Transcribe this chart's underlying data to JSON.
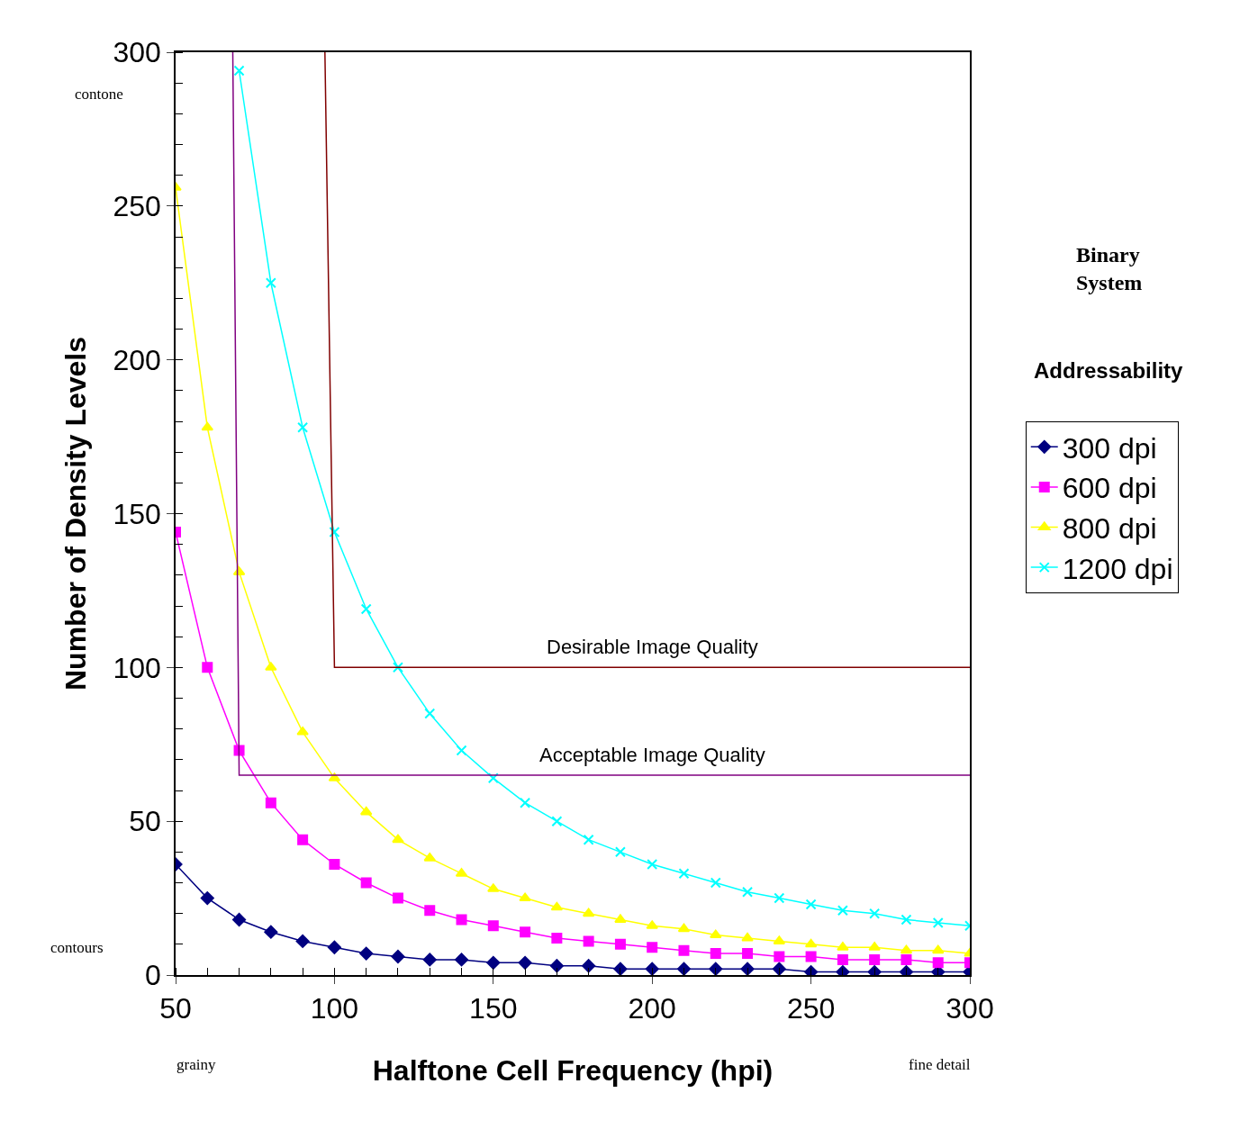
{
  "chart_data": {
    "type": "line",
    "xlabel": "Halftone Cell Frequency (hpi)",
    "ylabel": "Number of Density Levels",
    "legend_title": "Addressability",
    "x": [
      50,
      60,
      70,
      80,
      90,
      100,
      110,
      120,
      130,
      140,
      150,
      160,
      170,
      180,
      190,
      200,
      210,
      220,
      230,
      240,
      250,
      260,
      270,
      280,
      290,
      300
    ],
    "series": [
      {
        "name": "300 dpi",
        "color": "#000080",
        "marker": "diamond",
        "values": [
          36,
          25,
          18,
          14,
          11,
          9,
          7,
          6,
          5,
          5,
          4,
          4,
          3,
          3,
          2,
          2,
          2,
          2,
          2,
          2,
          1,
          1,
          1,
          1,
          1,
          1
        ]
      },
      {
        "name": "600 dpi",
        "color": "#ff00ff",
        "marker": "square",
        "values": [
          144,
          100,
          73,
          56,
          44,
          36,
          30,
          25,
          21,
          18,
          16,
          14,
          12,
          11,
          10,
          9,
          8,
          7,
          7,
          6,
          6,
          5,
          5,
          5,
          4,
          4
        ]
      },
      {
        "name": "800 dpi",
        "color": "#ffff00",
        "marker": "triangle",
        "values": [
          256,
          178,
          131,
          100,
          79,
          64,
          53,
          44,
          38,
          33,
          28,
          25,
          22,
          20,
          18,
          16,
          15,
          13,
          12,
          11,
          10,
          9,
          9,
          8,
          8,
          7
        ]
      },
      {
        "name": "1200 dpi",
        "color": "#00ffff",
        "marker": "cross",
        "values": [
          null,
          null,
          294,
          225,
          178,
          144,
          119,
          100,
          85,
          73,
          64,
          56,
          50,
          44,
          40,
          36,
          33,
          30,
          27,
          25,
          23,
          21,
          20,
          18,
          17,
          16
        ]
      },
      {
        "color": "#800000",
        "marker": "none",
        "x": [
          97,
          100,
          300
        ],
        "values": [
          300,
          100,
          100
        ]
      },
      {
        "color": "#800080",
        "marker": "none",
        "x": [
          68,
          70,
          300
        ],
        "values": [
          300,
          65,
          65
        ]
      }
    ],
    "annotations": [
      {
        "text": "Desirable Image Quality",
        "x": 200,
        "y": 100
      },
      {
        "text": "Acceptable Image Quality",
        "x": 200,
        "y": 65
      },
      "contone",
      "contours",
      "grainy",
      "fine detail",
      "Binary System"
    ],
    "xlim": [
      50,
      300
    ],
    "xticks": [
      50,
      100,
      150,
      200,
      250,
      300
    ],
    "ylim": [
      0,
      300
    ],
    "yticks": [
      0,
      50,
      100,
      150,
      200,
      250,
      300
    ],
    "legend": "right",
    "line_style": "solid"
  }
}
